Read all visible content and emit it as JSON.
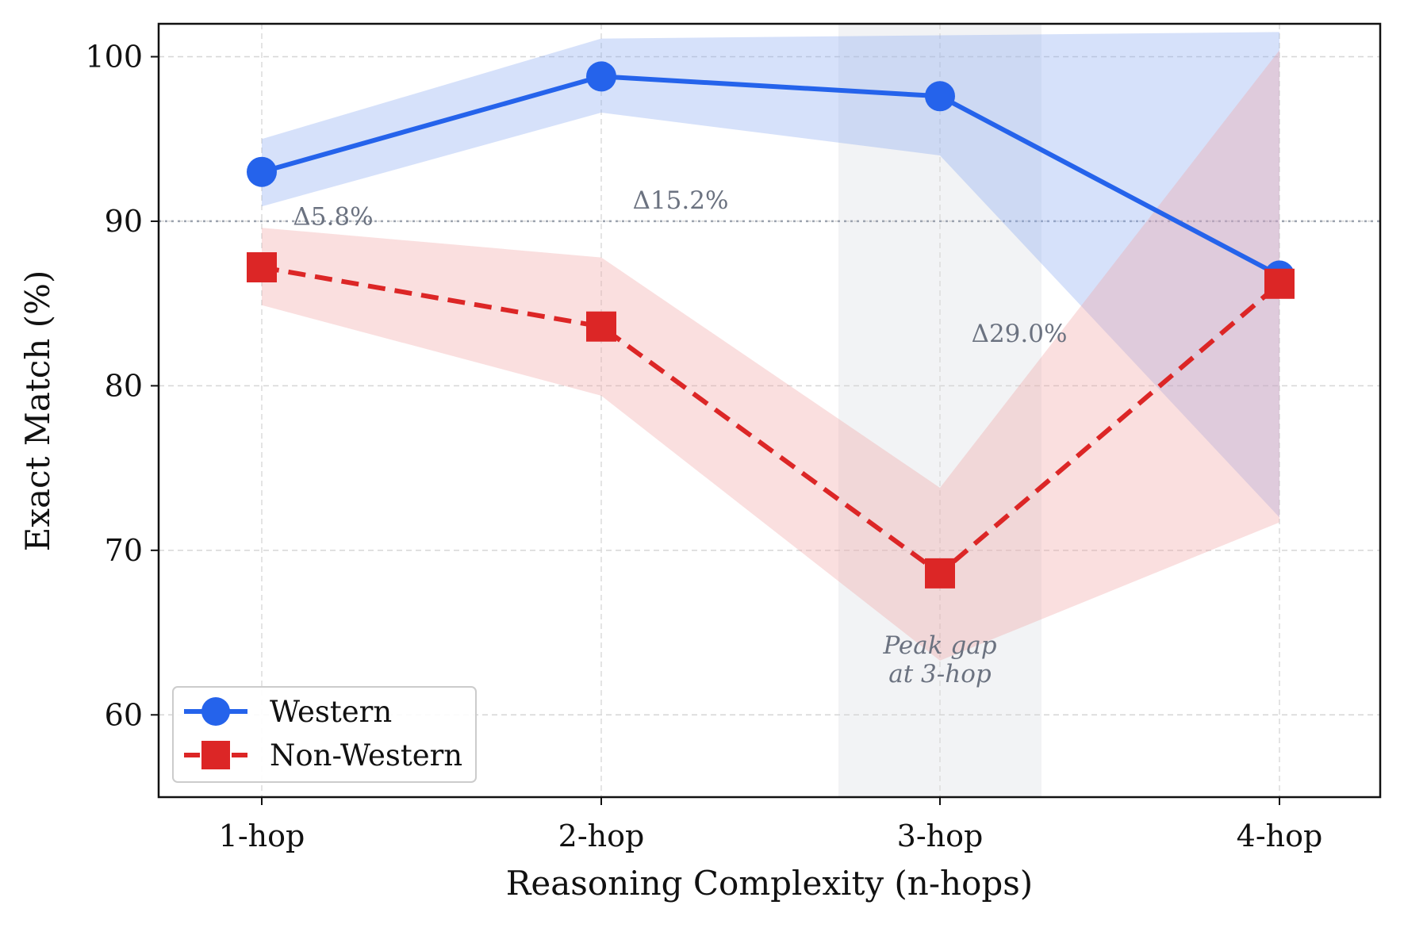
{
  "chart_data": {
    "type": "line",
    "title": "",
    "xlabel": "Reasoning Complexity (n-hops)",
    "ylabel": "Exact Match (%)",
    "categories": [
      "1-hop",
      "2-hop",
      "3-hop",
      "4-hop"
    ],
    "ylim": [
      55,
      102
    ],
    "yticks": [
      60,
      70,
      80,
      90,
      100
    ],
    "grid": true,
    "legend_position": "lower-left",
    "reference_line": 90,
    "highlight_category": "3-hop",
    "series": [
      {
        "name": "Western",
        "values": [
          93.0,
          98.8,
          97.6,
          86.7
        ],
        "lower": [
          90.9,
          96.6,
          94.0,
          72.0
        ],
        "upper": [
          95.0,
          101.1,
          101.3,
          101.5
        ],
        "color": "#2563eb",
        "band_color": "#8aa8f2",
        "marker": "circle",
        "linestyle": "solid"
      },
      {
        "name": "Non-Western",
        "values": [
          87.2,
          83.6,
          68.6,
          86.2
        ],
        "lower": [
          84.9,
          79.4,
          63.3,
          71.7
        ],
        "upper": [
          89.6,
          87.8,
          73.8,
          100.4
        ],
        "color": "#dc2626",
        "band_color": "#f2a3a3",
        "marker": "square",
        "linestyle": "dashed"
      }
    ],
    "annotations": [
      {
        "text": "Δ5.8%",
        "category": "1-hop",
        "y": 90.3
      },
      {
        "text": "Δ15.2%",
        "category": "2-hop",
        "y": 91.3
      },
      {
        "text": "Δ29.0%",
        "category": "3-hop",
        "y": 83.2
      }
    ],
    "peak_note": [
      "Peak gap",
      "at 3-hop"
    ]
  }
}
